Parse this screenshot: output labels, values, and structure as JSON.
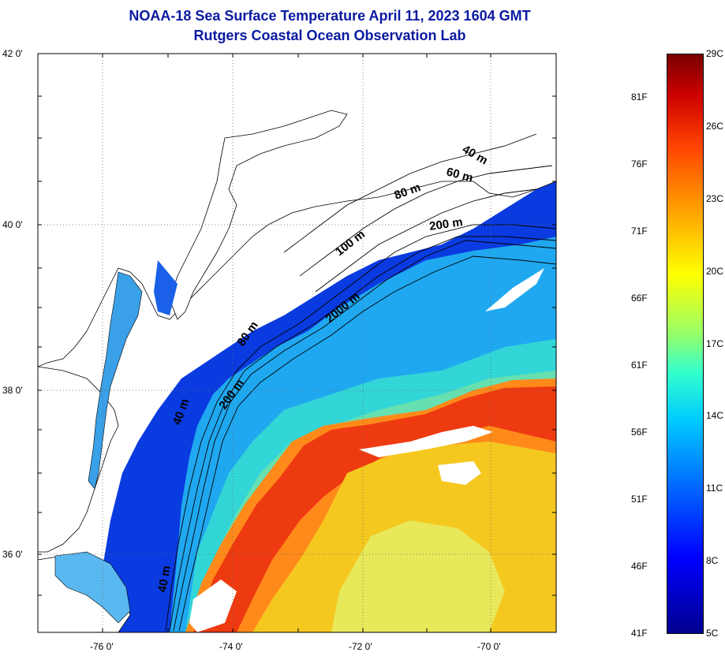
{
  "title": {
    "line1": "NOAA-18 Sea Surface Temperature April 11, 2023 1604 GMT",
    "line2": "Rutgers Coastal Ocean Observation Lab"
  },
  "axes": {
    "y_labels": [
      "42 0'",
      "40 0'",
      "38 0'",
      "36 0'"
    ],
    "x_labels": [
      "-76 0'",
      "-74 0'",
      "-72 0'",
      "-70 0'"
    ]
  },
  "contour_labels": [
    "40 m",
    "60 m",
    "80 m",
    "200 m",
    "100 m",
    "2000 m",
    "80 m",
    "40 m",
    "200 m",
    "40 m"
  ],
  "colorbar": {
    "fahrenheit": [
      "81F",
      "76F",
      "71F",
      "66F",
      "61F",
      "56F",
      "51F",
      "46F",
      "41F"
    ],
    "celsius": [
      "29C",
      "26C",
      "23C",
      "20C",
      "17C",
      "14C",
      "11C",
      "8C",
      "5C"
    ],
    "colors": [
      "#00008f",
      "#0000ff",
      "#00ccff",
      "#ffff00",
      "#ff4400",
      "#7a0000"
    ]
  }
}
